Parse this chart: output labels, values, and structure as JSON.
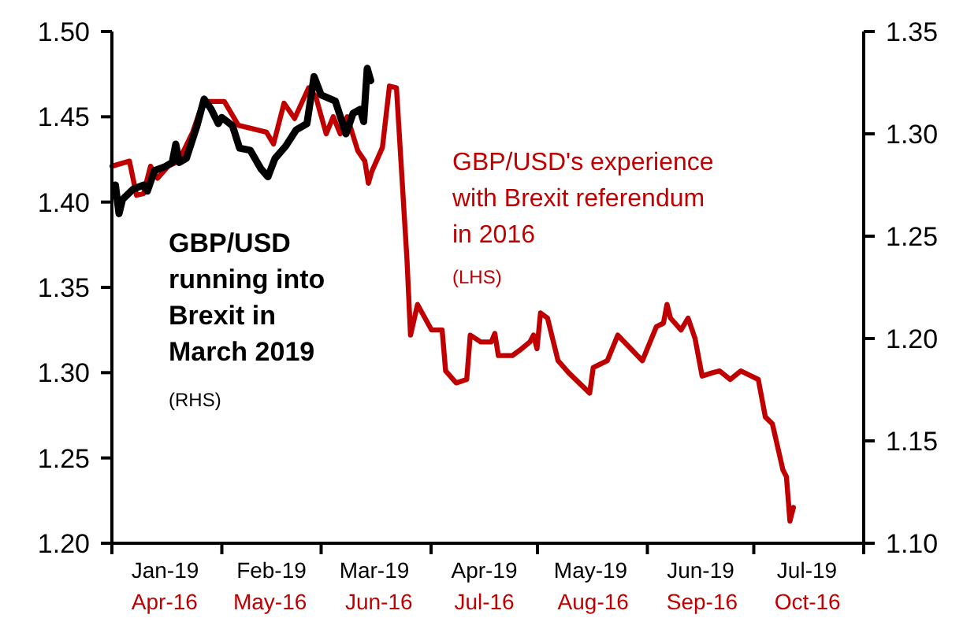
{
  "chart_data": {
    "type": "line",
    "xlim": [
      "2019-01-01",
      "2019-08-01"
    ],
    "xticks": [
      {
        "value": "2019-01-01",
        "label": null
      },
      {
        "value": "2019-01-16",
        "label": "Jan-19"
      },
      {
        "value": "2019-02-01",
        "label": null
      },
      {
        "value": "2019-02-15",
        "label": "Feb-19"
      },
      {
        "value": "2019-03-01",
        "label": null
      },
      {
        "value": "2019-03-16",
        "label": "Mar-19"
      },
      {
        "value": "2019-04-01",
        "label": null
      },
      {
        "value": "2019-04-16",
        "label": "Apr-19"
      },
      {
        "value": "2019-05-01",
        "label": null
      },
      {
        "value": "2019-05-16",
        "label": "May-19"
      },
      {
        "value": "2019-06-01",
        "label": null
      },
      {
        "value": "2019-06-16",
        "label": "Jun-19"
      },
      {
        "value": "2019-07-01",
        "label": null
      },
      {
        "value": "2019-07-16",
        "label": "Jul-19"
      },
      {
        "value": "2019-08-01",
        "label": null
      }
    ],
    "x2lim": [
      "2016-04-01",
      "2016-11-01"
    ],
    "x2ticks": [
      {
        "value": "2016-04-16",
        "label": "Apr-16"
      },
      {
        "value": "2016-05-16",
        "label": "May-16"
      },
      {
        "value": "2016-06-16",
        "label": "Jun-16"
      },
      {
        "value": "2016-07-16",
        "label": "Jul-16"
      },
      {
        "value": "2016-08-16",
        "label": "Aug-16"
      },
      {
        "value": "2016-09-16",
        "label": "Sep-16"
      },
      {
        "value": "2016-10-16",
        "label": "Oct-16"
      }
    ],
    "ylim": [
      1.2,
      1.5
    ],
    "yticks": [
      {
        "value": 1.2,
        "label": "1.20"
      },
      1.25,
      {
        "value": 1.3,
        "label": "1.30"
      },
      1.35,
      {
        "value": 1.4,
        "label": "1.40"
      },
      1.45,
      {
        "value": 1.5,
        "label": "1.50"
      }
    ],
    "y2lim": [
      1.1,
      1.35
    ],
    "y2ticks": [
      {
        "value": 1.1,
        "label": "1.10"
      },
      1.15,
      {
        "value": 1.2,
        "label": "1.20"
      },
      1.25,
      {
        "value": 1.3,
        "label": "1.30"
      },
      1.35
    ],
    "grid": false,
    "marker": "none",
    "line_style": "solid",
    "annotations": [
      "GBP/USD\nrunning into\nBrexit in\nMarch 2019",
      "(RHS)",
      "GBP/USD's experience\nwith Brexit referendum\nin 2016",
      "(LHS)"
    ],
    "series": [
      {
        "color": "#c00000",
        "axis": "x2",
        "x": [
          "2016-04-01",
          "2016-04-06",
          "2016-04-08",
          "2016-04-10",
          "2016-04-12",
          "2016-04-14",
          "2016-04-17",
          "2016-04-20",
          "2016-04-24",
          "2016-04-27",
          "2016-05-03",
          "2016-05-07",
          "2016-05-15",
          "2016-05-17",
          "2016-05-20",
          "2016-05-23",
          "2016-05-27",
          "2016-05-29",
          "2016-06-01",
          "2016-06-03",
          "2016-06-05",
          "2016-06-07",
          "2016-06-10",
          "2016-06-12",
          "2016-06-13",
          "2016-06-14",
          "2016-06-17",
          "2016-06-19",
          "2016-06-21",
          "2016-06-24",
          "2016-06-25",
          "2016-06-27",
          "2016-07-01",
          "2016-07-04",
          "2016-07-05",
          "2016-07-08",
          "2016-07-11",
          "2016-07-12",
          "2016-07-15",
          "2016-07-18",
          "2016-07-19",
          "2016-07-20",
          "2016-07-24",
          "2016-07-26",
          "2016-07-29",
          "2016-07-30",
          "2016-07-31",
          "2016-08-01",
          "2016-08-03",
          "2016-08-06",
          "2016-08-09",
          "2016-08-12",
          "2016-08-15",
          "2016-08-16",
          "2016-08-20",
          "2016-08-23",
          "2016-08-30",
          "2016-09-03",
          "2016-09-05",
          "2016-09-06",
          "2016-09-07",
          "2016-09-10",
          "2016-09-12",
          "2016-09-14",
          "2016-09-16",
          "2016-09-19",
          "2016-09-21",
          "2016-09-24",
          "2016-09-27",
          "2016-09-30",
          "2016-10-02",
          "2016-10-04",
          "2016-10-06",
          "2016-10-09",
          "2016-10-10",
          "2016-10-11",
          "2016-10-12"
        ],
        "values": [
          1.421,
          1.424,
          1.404,
          1.405,
          1.421,
          1.414,
          1.421,
          1.424,
          1.441,
          1.459,
          1.459,
          1.445,
          1.441,
          1.434,
          1.458,
          1.449,
          1.467,
          1.462,
          1.44,
          1.45,
          1.44,
          1.45,
          1.43,
          1.424,
          1.411,
          1.418,
          1.432,
          1.468,
          1.467,
          1.366,
          1.322,
          1.34,
          1.325,
          1.325,
          1.301,
          1.294,
          1.296,
          1.322,
          1.318,
          1.318,
          1.323,
          1.31,
          1.31,
          1.313,
          1.318,
          1.322,
          1.314,
          1.335,
          1.332,
          1.307,
          1.3,
          1.294,
          1.288,
          1.303,
          1.307,
          1.322,
          1.307,
          1.327,
          1.329,
          1.34,
          1.332,
          1.325,
          1.332,
          1.32,
          1.298,
          1.3,
          1.301,
          1.296,
          1.301,
          1.298,
          1.296,
          1.274,
          1.27,
          1.243,
          1.239,
          1.213,
          1.221
        ]
      },
      {
        "color": "#000000",
        "axis": "y2",
        "x": [
          "2019-01-02",
          "2019-01-03",
          "2019-01-04",
          "2019-01-07",
          "2019-01-10",
          "2019-01-11",
          "2019-01-13",
          "2019-01-16",
          "2019-01-18",
          "2019-01-19",
          "2019-01-20",
          "2019-01-22",
          "2019-01-25",
          "2019-01-27",
          "2019-01-29",
          "2019-01-31",
          "2019-02-01",
          "2019-02-04",
          "2019-02-06",
          "2019-02-09",
          "2019-02-12",
          "2019-02-14",
          "2019-02-16",
          "2019-02-19",
          "2019-02-22",
          "2019-02-25",
          "2019-02-27",
          "2019-03-01",
          "2019-03-05",
          "2019-03-08",
          "2019-03-10",
          "2019-03-12",
          "2019-03-13",
          "2019-03-14",
          "2019-03-15"
        ],
        "values": [
          1.275,
          1.261,
          1.268,
          1.273,
          1.275,
          1.272,
          1.282,
          1.284,
          1.286,
          1.295,
          1.286,
          1.288,
          1.304,
          1.317,
          1.312,
          1.305,
          1.308,
          1.304,
          1.293,
          1.292,
          1.283,
          1.279,
          1.288,
          1.294,
          1.302,
          1.305,
          1.328,
          1.319,
          1.316,
          1.3,
          1.31,
          1.312,
          1.306,
          1.332,
          1.326
        ]
      }
    ]
  }
}
